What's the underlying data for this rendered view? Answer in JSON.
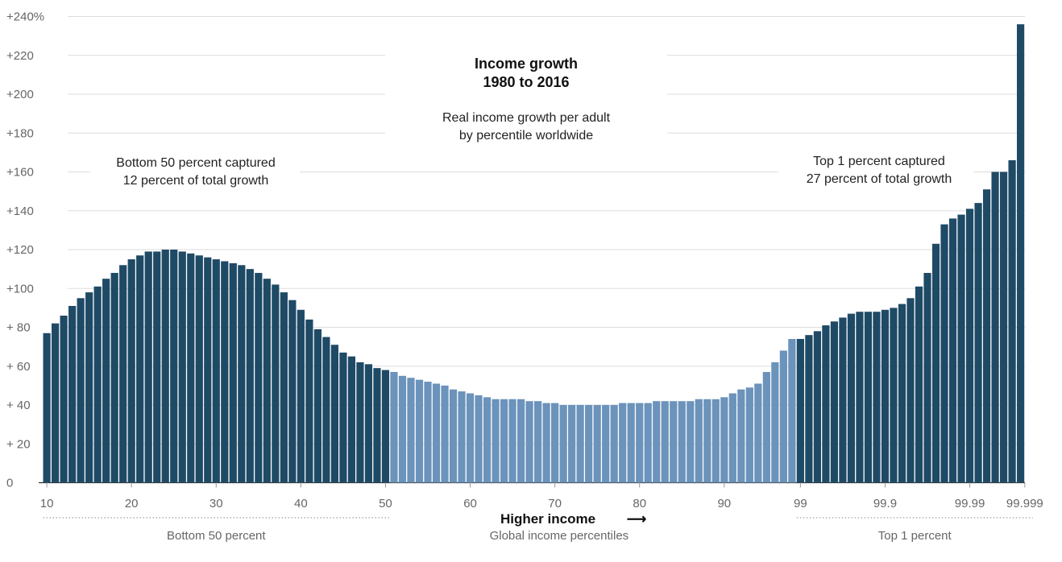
{
  "chart_data": {
    "type": "bar",
    "title": "Income growth",
    "title_line2": "1980 to 2016",
    "subtitle": "Real income growth per adult",
    "subtitle_line2": "by percentile worldwide",
    "xlabel": "Higher income",
    "xlabel_arrow": "⟶",
    "ylim": [
      0,
      240
    ],
    "y_ticks": [
      {
        "value": 0,
        "label": "0"
      },
      {
        "value": 20,
        "label": "+ 20"
      },
      {
        "value": 40,
        "label": "+ 40"
      },
      {
        "value": 60,
        "label": "+ 60"
      },
      {
        "value": 80,
        "label": "+ 80"
      },
      {
        "value": 100,
        "label": "+100"
      },
      {
        "value": 120,
        "label": "+120"
      },
      {
        "value": 140,
        "label": "+140"
      },
      {
        "value": 160,
        "label": "+160"
      },
      {
        "value": 180,
        "label": "+180"
      },
      {
        "value": 200,
        "label": "+200"
      },
      {
        "value": 220,
        "label": "+220"
      },
      {
        "value": 240,
        "label": "+240%"
      }
    ],
    "x_tick_labels": [
      {
        "bar": 0,
        "label": "10"
      },
      {
        "bar": 10,
        "label": "20"
      },
      {
        "bar": 20,
        "label": "30"
      },
      {
        "bar": 30,
        "label": "40"
      },
      {
        "bar": 40,
        "label": "50"
      },
      {
        "bar": 50,
        "label": "60"
      },
      {
        "bar": 60,
        "label": "70"
      },
      {
        "bar": 70,
        "label": "80"
      },
      {
        "bar": 80,
        "label": "90"
      },
      {
        "bar": 89,
        "label": "99"
      },
      {
        "bar": 99,
        "label": "99.9"
      },
      {
        "bar": 109,
        "label": "99.99"
      },
      {
        "bar": 115.5,
        "label": "99.999"
      }
    ],
    "segments": [
      {
        "label": "Bottom 50 percent",
        "from": 0,
        "to": 40
      },
      {
        "label": "Global income percentiles",
        "from": 41,
        "to": 80
      },
      {
        "label": "Top 1 percent",
        "from": 89,
        "to": 116
      }
    ],
    "annotations": [
      {
        "line1": "Bottom 50 percent captured",
        "line2": "12 percent of total growth"
      },
      {
        "line1": "Top 1 percent captured",
        "line2": "27 percent of total growth"
      }
    ],
    "highlight_color": "#1f4a66",
    "middle_color": "#6b93bb",
    "highlight_ranges": [
      [
        0,
        40
      ],
      [
        89,
        116
      ]
    ],
    "values": [
      77,
      82,
      86,
      91,
      95,
      98,
      101,
      105,
      108,
      112,
      115,
      117,
      119,
      119,
      120,
      120,
      119,
      118,
      117,
      116,
      115,
      114,
      113,
      112,
      110,
      108,
      105,
      102,
      98,
      94,
      89,
      84,
      79,
      75,
      71,
      67,
      65,
      62,
      61,
      59,
      58,
      57,
      55,
      54,
      53,
      52,
      51,
      50,
      48,
      47,
      46,
      45,
      44,
      43,
      43,
      43,
      43,
      42,
      42,
      41,
      41,
      40,
      40,
      40,
      40,
      40,
      40,
      40,
      41,
      41,
      41,
      41,
      42,
      42,
      42,
      42,
      42,
      43,
      43,
      43,
      44,
      46,
      48,
      49,
      51,
      57,
      62,
      68,
      74,
      74,
      76,
      78,
      81,
      83,
      85,
      87,
      88,
      88,
      88,
      89,
      90,
      92,
      95,
      101,
      108,
      123,
      133,
      136,
      138,
      141,
      144,
      151,
      160,
      160,
      166,
      236
    ]
  }
}
